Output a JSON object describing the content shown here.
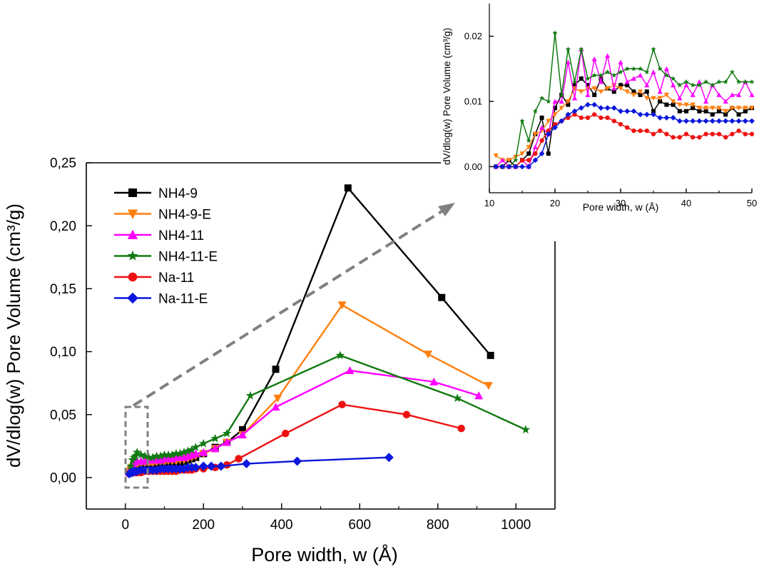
{
  "colors": {
    "NH4-9": "#000000",
    "NH4-9-E": "#ff7f0e",
    "NH4-11": "#ff00ff",
    "NH4-11-E": "#117a11",
    "Na-11": "#ee1111",
    "Na-11-E": "#0b17dd",
    "arrow": "#808080"
  },
  "chart_data": [
    {
      "id": "main",
      "type": "line",
      "xlabel": "Pore width, w (Å)",
      "ylabel": "dV/dlog(w) Pore Volume (cm³/g)",
      "xlim": [
        -100,
        1100
      ],
      "ylim": [
        -0.025,
        0.25
      ],
      "xticks": [
        "0",
        "200",
        "400",
        "600",
        "800",
        "1000"
      ],
      "yticks": [
        "0,00",
        "0,05",
        "0,10",
        "0,15",
        "0,20",
        "0,25"
      ],
      "legend": "top-left",
      "series": [
        {
          "name": "NH4-9",
          "marker": "square",
          "x": [
            10,
            14,
            18,
            22,
            26,
            30,
            40,
            50,
            60,
            70,
            80,
            90,
            100,
            110,
            120,
            130,
            140,
            150,
            160,
            170,
            180,
            200,
            230,
            260,
            300,
            385,
            570,
            810,
            935
          ],
          "y": [
            0.004,
            0.006,
            0.008,
            0.009,
            0.01,
            0.01,
            0.01,
            0.01,
            0.011,
            0.011,
            0.011,
            0.011,
            0.012,
            0.012,
            0.012,
            0.012,
            0.012,
            0.013,
            0.014,
            0.015,
            0.016,
            0.019,
            0.024,
            0.028,
            0.038,
            0.086,
            0.23,
            0.143,
            0.097
          ]
        },
        {
          "name": "NH4-9-E",
          "marker": "triangle-down",
          "x": [
            10,
            14,
            18,
            22,
            26,
            30,
            40,
            50,
            60,
            70,
            80,
            90,
            100,
            110,
            120,
            130,
            140,
            150,
            160,
            170,
            180,
            200,
            230,
            260,
            300,
            390,
            555,
            775,
            930
          ],
          "y": [
            0.004,
            0.006,
            0.008,
            0.009,
            0.01,
            0.01,
            0.011,
            0.011,
            0.011,
            0.011,
            0.012,
            0.012,
            0.012,
            0.013,
            0.013,
            0.013,
            0.014,
            0.014,
            0.015,
            0.016,
            0.017,
            0.019,
            0.023,
            0.028,
            0.034,
            0.063,
            0.137,
            0.098,
            0.073
          ]
        },
        {
          "name": "NH4-11",
          "marker": "triangle-up",
          "x": [
            10,
            14,
            18,
            22,
            26,
            30,
            40,
            50,
            60,
            70,
            80,
            90,
            100,
            110,
            120,
            130,
            140,
            150,
            160,
            170,
            180,
            200,
            230,
            260,
            300,
            385,
            575,
            790,
            905
          ],
          "y": [
            0.004,
            0.007,
            0.01,
            0.012,
            0.013,
            0.013,
            0.013,
            0.013,
            0.014,
            0.014,
            0.014,
            0.014,
            0.015,
            0.015,
            0.015,
            0.016,
            0.016,
            0.016,
            0.017,
            0.018,
            0.019,
            0.02,
            0.023,
            0.028,
            0.034,
            0.056,
            0.085,
            0.076,
            0.065
          ]
        },
        {
          "name": "NH4-11-E",
          "marker": "star",
          "x": [
            10,
            14,
            18,
            22,
            26,
            30,
            40,
            50,
            60,
            70,
            80,
            90,
            100,
            110,
            120,
            130,
            140,
            150,
            160,
            170,
            180,
            200,
            230,
            260,
            320,
            550,
            850,
            1025
          ],
          "y": [
            0.004,
            0.009,
            0.014,
            0.016,
            0.017,
            0.02,
            0.018,
            0.017,
            0.016,
            0.016,
            0.017,
            0.017,
            0.018,
            0.018,
            0.018,
            0.019,
            0.019,
            0.02,
            0.021,
            0.022,
            0.024,
            0.027,
            0.031,
            0.035,
            0.065,
            0.097,
            0.063,
            0.038
          ]
        },
        {
          "name": "Na-11",
          "marker": "circle",
          "x": [
            10,
            14,
            18,
            22,
            26,
            30,
            40,
            50,
            60,
            70,
            80,
            90,
            100,
            110,
            120,
            130,
            140,
            150,
            160,
            170,
            180,
            200,
            230,
            260,
            290,
            410,
            555,
            720,
            860
          ],
          "y": [
            0.003,
            0.004,
            0.004,
            0.004,
            0.004,
            0.004,
            0.004,
            0.005,
            0.005,
            0.005,
            0.005,
            0.005,
            0.005,
            0.005,
            0.005,
            0.005,
            0.006,
            0.006,
            0.006,
            0.006,
            0.007,
            0.007,
            0.008,
            0.01,
            0.015,
            0.035,
            0.058,
            0.05,
            0.039
          ]
        },
        {
          "name": "Na-11-E",
          "marker": "diamond",
          "x": [
            10,
            14,
            18,
            22,
            26,
            30,
            40,
            50,
            60,
            70,
            80,
            90,
            100,
            110,
            120,
            130,
            140,
            150,
            160,
            170,
            180,
            200,
            220,
            245,
            310,
            440,
            675
          ],
          "y": [
            0.003,
            0.004,
            0.004,
            0.005,
            0.005,
            0.005,
            0.006,
            0.006,
            0.006,
            0.006,
            0.006,
            0.007,
            0.007,
            0.007,
            0.007,
            0.007,
            0.007,
            0.007,
            0.008,
            0.008,
            0.008,
            0.009,
            0.009,
            0.009,
            0.011,
            0.013,
            0.016
          ]
        }
      ]
    },
    {
      "id": "inset",
      "type": "line",
      "xlabel": "Pore width, w (Å)",
      "ylabel": "dV/dlog(w) Pore Volume (cm³/g)",
      "xlim": [
        10,
        50
      ],
      "ylim": [
        -0.004,
        0.025
      ],
      "xticks": [
        "10",
        "20",
        "30",
        "40",
        "50"
      ],
      "yticks": [
        "0.00",
        "0.01",
        "0.02"
      ],
      "series": [
        {
          "name": "NH4-9",
          "marker": "square",
          "x": [
            11,
            12,
            13,
            14,
            15,
            16,
            17,
            18,
            19,
            20,
            21,
            22,
            23,
            24,
            25,
            26,
            27,
            28,
            29,
            30,
            31,
            32,
            33,
            34,
            35,
            36,
            37,
            38,
            39,
            40,
            41,
            42,
            43,
            44,
            45,
            46,
            47,
            48,
            49,
            50
          ],
          "y": [
            0,
            0,
            0.001,
            0,
            0.001,
            0.002,
            0.005,
            0.0075,
            0.002,
            0.009,
            0.011,
            0.0095,
            0.0125,
            0.0135,
            0.0125,
            0.011,
            0.0135,
            0.012,
            0.0115,
            0.0125,
            0.0125,
            0.0115,
            0.011,
            0.0115,
            0.0085,
            0.01,
            0.0095,
            0.0095,
            0.0085,
            0.0085,
            0.009,
            0.0085,
            0.0085,
            0.008,
            0.0085,
            0.008,
            0.009,
            0.008,
            0.0085,
            0.009
          ]
        },
        {
          "name": "NH4-9-E",
          "marker": "triangle-down",
          "x": [
            11,
            12,
            13,
            14,
            15,
            16,
            17,
            18,
            19,
            20,
            21,
            22,
            23,
            24,
            25,
            26,
            27,
            28,
            29,
            30,
            31,
            32,
            33,
            34,
            35,
            36,
            37,
            38,
            39,
            40,
            41,
            42,
            43,
            44,
            45,
            46,
            47,
            48,
            49,
            50
          ],
          "y": [
            0.0017,
            0.001,
            0.001,
            0.0015,
            0.002,
            0.003,
            0.005,
            0.0055,
            0.007,
            0.008,
            0.009,
            0.01,
            0.012,
            0.0115,
            0.012,
            0.012,
            0.0115,
            0.012,
            0.0125,
            0.012,
            0.0115,
            0.011,
            0.0115,
            0.0105,
            0.0105,
            0.0105,
            0.011,
            0.01,
            0.0095,
            0.0095,
            0.0095,
            0.009,
            0.009,
            0.009,
            0.009,
            0.0085,
            0.009,
            0.009,
            0.009,
            0.009
          ]
        },
        {
          "name": "NH4-11",
          "marker": "triangle-up",
          "x": [
            11,
            12,
            13,
            14,
            15,
            16,
            17,
            18,
            19,
            20,
            21,
            22,
            23,
            24,
            25,
            26,
            27,
            28,
            29,
            30,
            31,
            32,
            33,
            34,
            35,
            36,
            37,
            38,
            39,
            40,
            41,
            42,
            43,
            44,
            45,
            46,
            47,
            48,
            49,
            50
          ],
          "y": [
            0,
            0.001,
            0,
            0,
            0.001,
            0,
            0.003,
            0.006,
            0.005,
            0.01,
            0.01,
            0.016,
            0.0105,
            0.018,
            0.011,
            0.0165,
            0.013,
            0.017,
            0.012,
            0.016,
            0.013,
            0.0135,
            0.014,
            0.0125,
            0.0145,
            0.0115,
            0.015,
            0.0125,
            0.0105,
            0.0125,
            0.011,
            0.013,
            0.01,
            0.0125,
            0.011,
            0.01,
            0.011,
            0.011,
            0.013,
            0.011
          ]
        },
        {
          "name": "NH4-11-E",
          "marker": "star",
          "x": [
            11,
            12,
            13,
            14,
            15,
            16,
            17,
            18,
            19,
            20,
            21,
            22,
            23,
            24,
            25,
            26,
            27,
            28,
            29,
            30,
            31,
            32,
            33,
            34,
            35,
            36,
            37,
            38,
            39,
            40,
            41,
            42,
            43,
            44,
            45,
            46,
            47,
            48,
            49,
            50
          ],
          "y": [
            0,
            0,
            0,
            0.001,
            0.007,
            0.004,
            0.0085,
            0.0105,
            0.01,
            0.0205,
            0.011,
            0.018,
            0.013,
            0.018,
            0.0135,
            0.014,
            0.014,
            0.0145,
            0.014,
            0.0145,
            0.015,
            0.015,
            0.015,
            0.0145,
            0.018,
            0.015,
            0.014,
            0.0135,
            0.0125,
            0.013,
            0.0125,
            0.0125,
            0.013,
            0.0125,
            0.013,
            0.013,
            0.0145,
            0.013,
            0.013,
            0.013
          ]
        },
        {
          "name": "Na-11",
          "marker": "circle",
          "x": [
            11,
            12,
            13,
            14,
            15,
            16,
            17,
            18,
            19,
            20,
            21,
            22,
            23,
            24,
            25,
            26,
            27,
            28,
            29,
            30,
            31,
            32,
            33,
            34,
            35,
            36,
            37,
            38,
            39,
            40,
            41,
            42,
            43,
            44,
            45,
            46,
            47,
            48,
            49,
            50
          ],
          "y": [
            0,
            0,
            0,
            0,
            0.001,
            0.001,
            0.002,
            0.004,
            0.0055,
            0.0065,
            0.007,
            0.0075,
            0.008,
            0.0075,
            0.0075,
            0.008,
            0.0075,
            0.0075,
            0.007,
            0.0065,
            0.006,
            0.0055,
            0.0055,
            0.0055,
            0.005,
            0.0055,
            0.005,
            0.0045,
            0.0045,
            0.005,
            0.0045,
            0.0045,
            0.005,
            0.005,
            0.005,
            0.0045,
            0.005,
            0.0055,
            0.005,
            0.005
          ]
        },
        {
          "name": "Na-11-E",
          "marker": "diamond",
          "x": [
            11,
            12,
            13,
            14,
            15,
            16,
            17,
            18,
            19,
            20,
            21,
            22,
            23,
            24,
            25,
            26,
            27,
            28,
            29,
            30,
            31,
            32,
            33,
            34,
            35,
            36,
            37,
            38,
            39,
            40,
            41,
            42,
            43,
            44,
            45,
            46,
            47,
            48,
            49,
            50
          ],
          "y": [
            0,
            0,
            0,
            0,
            0,
            0,
            0.001,
            0.002,
            0.005,
            0.006,
            0.007,
            0.008,
            0.0085,
            0.009,
            0.0095,
            0.0095,
            0.009,
            0.009,
            0.009,
            0.0085,
            0.0085,
            0.0085,
            0.008,
            0.008,
            0.008,
            0.0075,
            0.0075,
            0.0075,
            0.007,
            0.007,
            0.007,
            0.007,
            0.007,
            0.007,
            0.007,
            0.007,
            0.007,
            0.007,
            0.007,
            0.007
          ]
        }
      ]
    }
  ]
}
